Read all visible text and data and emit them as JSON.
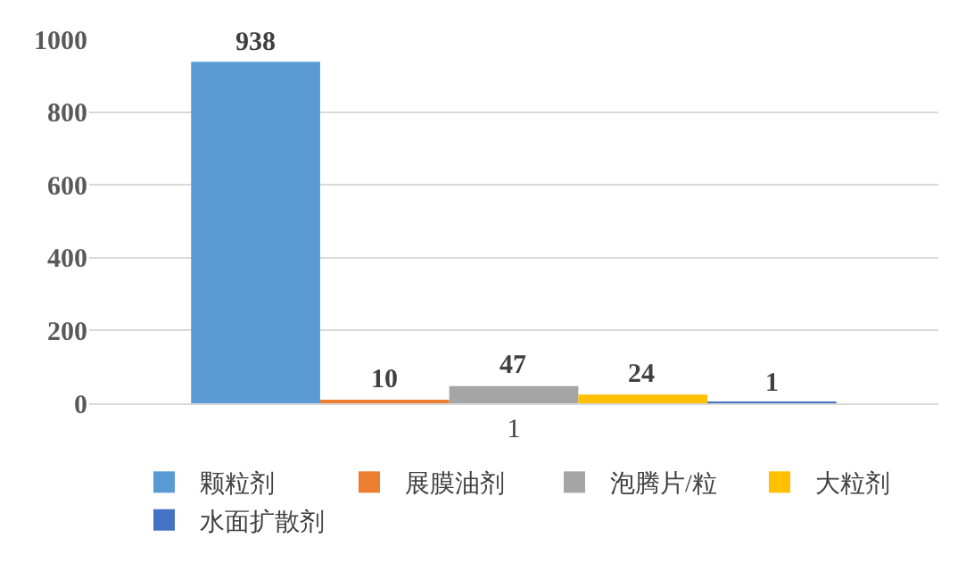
{
  "chart_data": {
    "type": "bar",
    "categories": [
      "1"
    ],
    "series": [
      {
        "name": "颗粒剂",
        "color": "#5b9bd5",
        "values": [
          938
        ]
      },
      {
        "name": "展膜油剂",
        "color": "#ed7d31",
        "values": [
          10
        ]
      },
      {
        "name": "泡腾片/粒",
        "color": "#a5a5a5",
        "values": [
          47
        ]
      },
      {
        "name": "大粒剂",
        "color": "#ffc000",
        "values": [
          24
        ]
      },
      {
        "name": "水面扩散剂",
        "color": "#4472c4",
        "values": [
          1
        ]
      }
    ],
    "ylim": [
      0,
      1000
    ],
    "yticks": [
      0,
      200,
      400,
      600,
      800,
      1000
    ],
    "grid": "y",
    "legend": "bottom",
    "data_labels": true
  }
}
